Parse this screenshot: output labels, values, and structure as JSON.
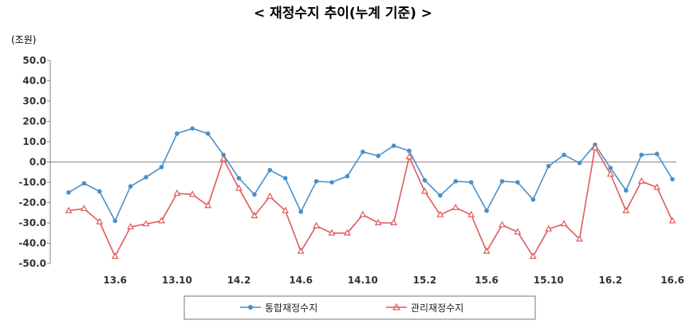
{
  "chart_data": {
    "type": "line",
    "title": "< 재정수지 추이(누계 기준) >",
    "ylabel": "(조원)",
    "xlabel": "",
    "ylim": [
      -50,
      50
    ],
    "yticks": [
      "50.0",
      "40.0",
      "30.0",
      "20.0",
      "10.0",
      "0.0",
      "-10.0",
      "-20.0",
      "-30.0",
      "-40.0",
      "-50.0"
    ],
    "xtick_labels": [
      "13.6",
      "13.10",
      "14.2",
      "14.6",
      "14.10",
      "15.2",
      "15.6",
      "15.10",
      "16.2",
      "16.6"
    ],
    "grid": false,
    "legend_position": "bottom",
    "series": [
      {
        "name": "통합재정수지",
        "color": "#4a90c8",
        "marker": "circle",
        "values": [
          -15,
          -10.5,
          -14.5,
          -29,
          -12,
          -7.5,
          -2.5,
          14,
          16.5,
          14,
          3.5,
          -8,
          -16,
          -4,
          -8,
          -24.5,
          -9.5,
          -10,
          -7,
          5,
          3,
          8,
          5.5,
          -9,
          -16.5,
          -9.5,
          -10,
          -24,
          -9.5,
          -10,
          -18.5,
          -2,
          3.5,
          -0.5,
          8.5,
          -3,
          -14,
          3.5,
          4,
          -8.5
        ]
      },
      {
        "name": "관리재정수지",
        "color": "#e05a5a",
        "marker": "triangle",
        "values": [
          -24,
          -23,
          -29.5,
          -46.5,
          -32,
          -30.5,
          -29,
          -15.5,
          -16,
          -21.5,
          1.5,
          -13,
          -26.5,
          -17,
          -24,
          -44,
          -31.5,
          -35,
          -35,
          -26,
          -30,
          -30,
          2.5,
          -14.5,
          -26,
          -22.5,
          -26,
          -44,
          -31,
          -34.5,
          -46.5,
          -33,
          -30.5,
          -38,
          7,
          -6,
          -24,
          -9.5,
          -12.5,
          -29
        ]
      }
    ]
  }
}
